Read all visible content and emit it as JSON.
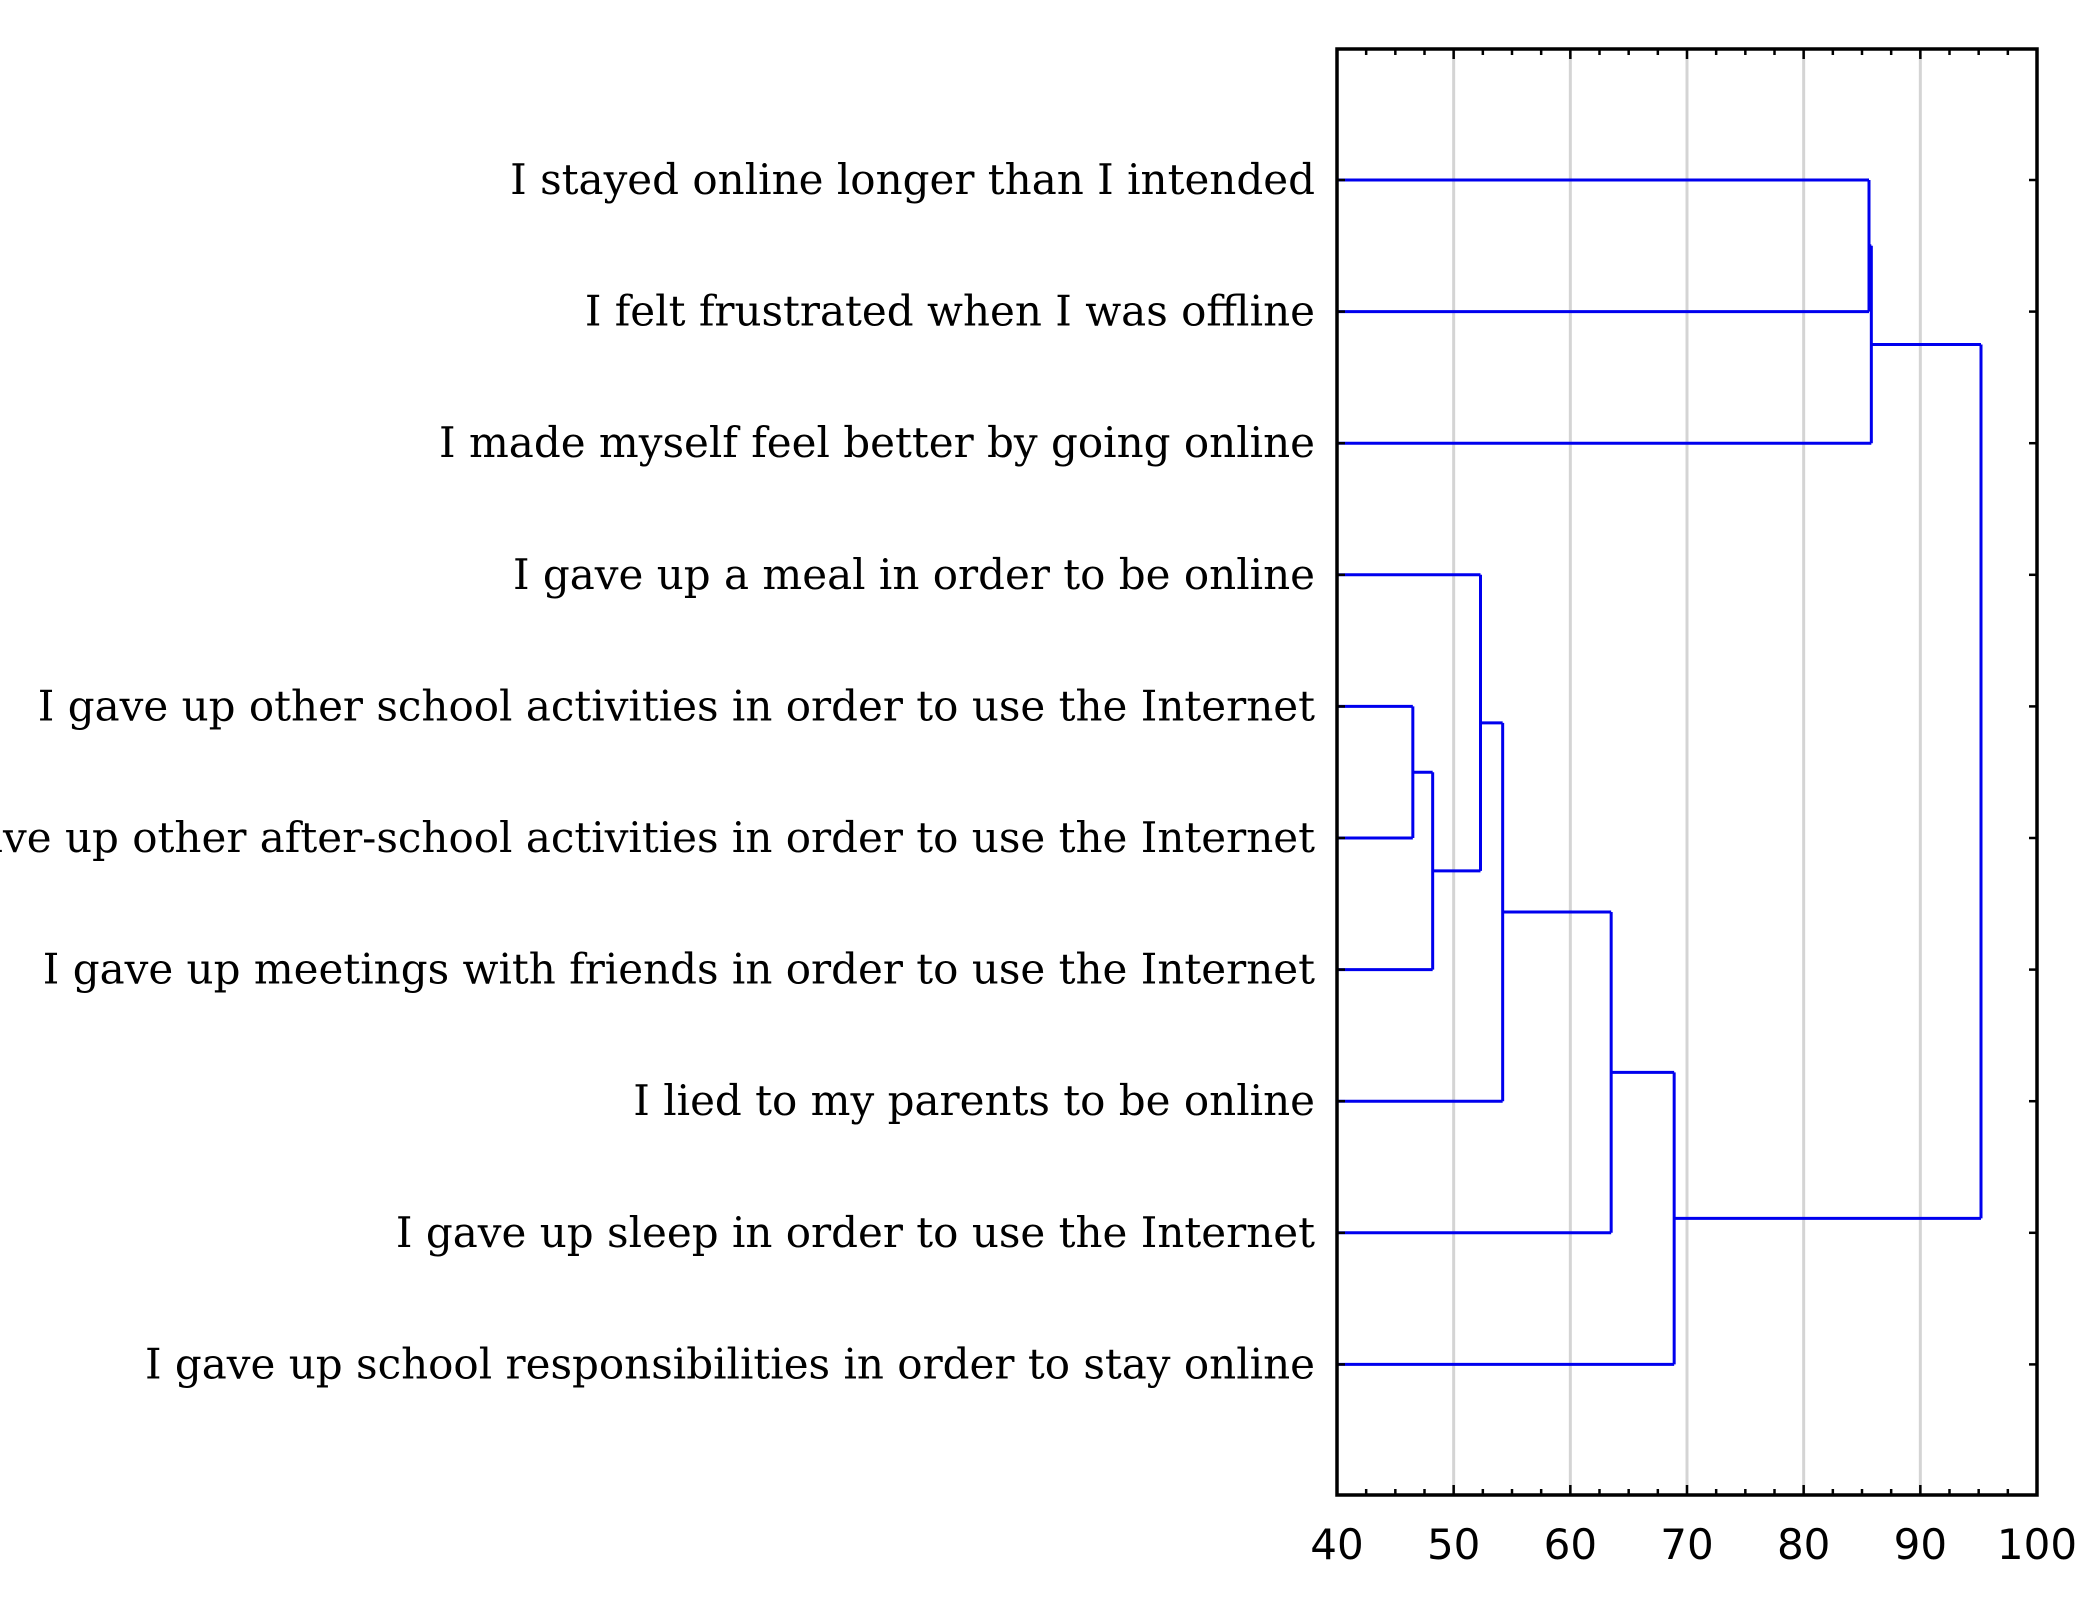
{
  "chart_data": {
    "type": "dendrogram",
    "orientation": "horizontal",
    "xlim": [
      40,
      100
    ],
    "x_ticks": [
      40,
      50,
      60,
      70,
      80,
      90,
      100
    ],
    "grid": true,
    "line_color": "#0000ee",
    "leaves": [
      "I stayed online longer than I intended",
      "I felt frustrated when I was offline",
      "I made myself feel better by going online",
      "I gave up a meal in order to be online",
      "I gave up other school activities in order to use the Internet",
      "I gave up other after-school activities in order to use the Internet",
      "I gave up meetings with friends in order to use the Internet",
      "I lied to my parents to be online",
      "I gave up sleep in order to use the Internet",
      "I gave up school responsibilities in order to stay online"
    ],
    "merges": [
      {
        "a": "L4",
        "b": "L5",
        "height": 46.5
      },
      {
        "a": "M0",
        "b": "L6",
        "height": 48.2
      },
      {
        "a": "L3",
        "b": "M1",
        "height": 52.3
      },
      {
        "a": "M2",
        "b": "L7",
        "height": 54.2
      },
      {
        "a": "M3",
        "b": "L8",
        "height": 63.5
      },
      {
        "a": "M4",
        "b": "L9",
        "height": 68.9
      },
      {
        "a": "L0",
        "b": "L1",
        "height": 85.6
      },
      {
        "a": "M6",
        "b": "L2",
        "height": 85.8
      },
      {
        "a": "M7",
        "b": "M5",
        "height": 95.2
      }
    ]
  }
}
